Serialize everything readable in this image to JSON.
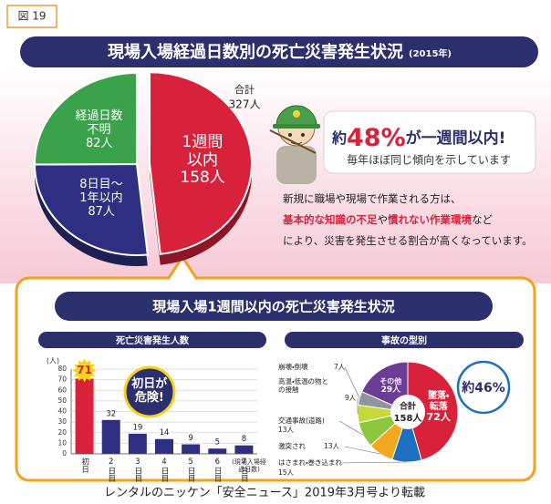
{
  "figure_label": "図 19",
  "header": {
    "title": "現場入場経過日数別の死亡災害発生状況",
    "year": "(2015年)"
  },
  "chart_data": [
    {
      "type": "pie",
      "categories": [
        "1週間以内",
        "8日目〜1年以内",
        "経過日数不明"
      ],
      "values": [
        158,
        87,
        82
      ],
      "value_labels": [
        "158人",
        "87人",
        "82人"
      ],
      "colors": [
        "#d8223b",
        "#2e2f82",
        "#3aa24a"
      ],
      "total": {
        "label": "合計",
        "value": 327,
        "value_label": "327人"
      }
    },
    {
      "type": "bar",
      "title": "死亡災害発生人数",
      "y_label": "(人)",
      "x_label": "(現場入場経過日数)",
      "categories": [
        "初日",
        "2日目",
        "3日目",
        "4日目",
        "5日目",
        "6日目",
        "7日目"
      ],
      "values": [
        71,
        32,
        19,
        14,
        9,
        5,
        8
      ],
      "colors": [
        "#d8223b",
        "#2e2f82",
        "#2e2f82",
        "#2e2f82",
        "#2e2f82",
        "#2e2f82",
        "#2e2f82"
      ],
      "ylim": [
        0,
        80
      ],
      "yticks": [
        0,
        10,
        20,
        30,
        40,
        50,
        60,
        70,
        80
      ],
      "grid": true,
      "annotation": "初日が危険!"
    },
    {
      "type": "pie",
      "title": "事故の型別",
      "categories": [
        "墜落・転落",
        "はさまれ・巻き込まれ",
        "激突され",
        "交通事故(道路)",
        "高温・低温の物との接触",
        "崩壊・倒壊",
        "その他"
      ],
      "values": [
        72,
        15,
        13,
        13,
        9,
        7,
        29
      ],
      "value_labels": [
        "72人",
        "15人",
        "13人",
        "13人",
        "9人",
        "7人",
        "29人"
      ],
      "colors": [
        "#d8223b",
        "#1d6fbf",
        "#f3a81f",
        "#8dc63f",
        "#c5d93a",
        "#8f959c",
        "#6d3c97"
      ],
      "total": {
        "label": "合計",
        "value": 158,
        "value_label": "158人"
      },
      "annotation": "約46%"
    }
  ],
  "callout": {
    "headline": [
      "約",
      "48%",
      "が一週間以内!"
    ],
    "subline": "毎年ほぼ同じ傾向を示しています"
  },
  "note": {
    "lines": [
      [
        "新規に職場や現場で作業される方は、"
      ],
      [
        "基本的な知識の不足",
        "や",
        "慣れない作業環境",
        "など"
      ],
      [
        "により、災害を発生させる割合が高くなっています。"
      ]
    ]
  },
  "section_title": "現場入場1週間以内の死亡災害発生状況",
  "source": "レンタルのニッケン「安全ニュース」2019年3月号より転載"
}
